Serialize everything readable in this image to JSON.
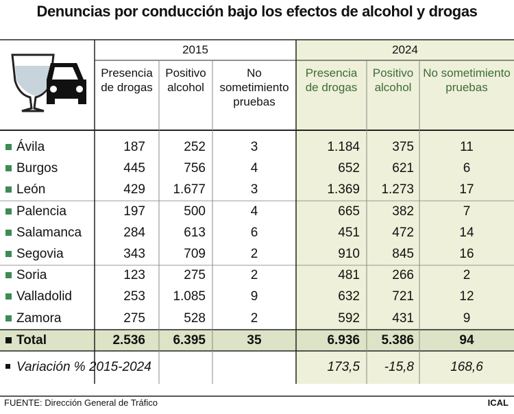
{
  "title": "Denuncias por conducción bajo los efectos de alcohol y drogas",
  "years": [
    "2015",
    "2024"
  ],
  "columns": [
    "Presencia de drogas",
    "Positivo alcohol",
    "No sometimiento pruebas",
    "Presencia de drogas",
    "Positivo alcohol",
    "No sometimiento pruebas"
  ],
  "rows": [
    {
      "name": "Ávila",
      "values": [
        "187",
        "252",
        "3",
        "1.184",
        "375",
        "11"
      ]
    },
    {
      "name": "Burgos",
      "values": [
        "445",
        "756",
        "4",
        "652",
        "621",
        "6"
      ]
    },
    {
      "name": "León",
      "values": [
        "429",
        "1.677",
        "3",
        "1.369",
        "1.273",
        "17"
      ]
    },
    {
      "name": "Palencia",
      "values": [
        "197",
        "500",
        "4",
        "665",
        "382",
        "7"
      ]
    },
    {
      "name": "Salamanca",
      "values": [
        "284",
        "613",
        "6",
        "451",
        "472",
        "14"
      ]
    },
    {
      "name": "Segovia",
      "values": [
        "343",
        "709",
        "2",
        "910",
        "845",
        "16"
      ]
    },
    {
      "name": "Soria",
      "values": [
        "123",
        "275",
        "2",
        "481",
        "266",
        "2"
      ]
    },
    {
      "name": "Valladolid",
      "values": [
        "253",
        "1.085",
        "9",
        "632",
        "721",
        "12"
      ]
    },
    {
      "name": "Zamora",
      "values": [
        "275",
        "528",
        "2",
        "592",
        "431",
        "9"
      ]
    }
  ],
  "total": {
    "name": "Total",
    "values": [
      "2.536",
      "6.395",
      "35",
      "6.936",
      "5.386",
      "94"
    ]
  },
  "variation": {
    "name": "Variación % 2015-2024",
    "values": [
      "173,5",
      "-15,8",
      "168,6"
    ]
  },
  "source": "FUENTE: Dirección General de Tráfico",
  "brand": "ICAL"
}
